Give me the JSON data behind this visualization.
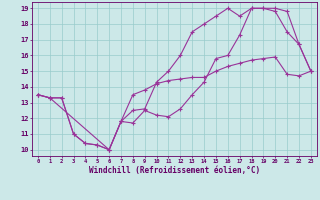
{
  "xlabel": "Windchill (Refroidissement éolien,°C)",
  "bg_color": "#cce8e8",
  "line_color": "#993399",
  "grid_color": "#99cccc",
  "axis_color": "#660066",
  "label_color": "#660066",
  "xlim": [
    -0.5,
    23.5
  ],
  "ylim": [
    9.6,
    19.4
  ],
  "xticks": [
    0,
    1,
    2,
    3,
    4,
    5,
    6,
    7,
    8,
    9,
    10,
    11,
    12,
    13,
    14,
    15,
    16,
    17,
    18,
    19,
    20,
    21,
    22,
    23
  ],
  "yticks": [
    10,
    11,
    12,
    13,
    14,
    15,
    16,
    17,
    18,
    19
  ],
  "curve1_x": [
    0,
    1,
    2,
    3,
    4,
    5,
    6,
    7,
    8,
    9,
    10,
    11,
    12,
    13,
    14,
    15,
    16,
    17,
    18,
    19,
    20,
    21,
    22,
    23
  ],
  "curve1_y": [
    13.5,
    13.3,
    13.3,
    11.0,
    10.4,
    10.3,
    10.0,
    11.8,
    11.7,
    12.5,
    12.2,
    12.1,
    12.6,
    13.5,
    14.3,
    15.8,
    16.0,
    17.3,
    19.0,
    19.0,
    19.0,
    18.8,
    16.7,
    15.0
  ],
  "curve2_x": [
    0,
    1,
    2,
    3,
    4,
    5,
    6,
    7,
    8,
    9,
    10,
    11,
    12,
    13,
    14,
    15,
    16,
    17,
    18,
    19,
    20,
    21,
    22,
    23
  ],
  "curve2_y": [
    13.5,
    13.3,
    13.3,
    11.0,
    10.4,
    10.3,
    10.0,
    11.8,
    13.5,
    13.8,
    14.2,
    14.4,
    14.5,
    14.6,
    14.6,
    15.0,
    15.3,
    15.5,
    15.7,
    15.8,
    15.9,
    14.8,
    14.7,
    15.0
  ],
  "curve3_x": [
    0,
    1,
    6,
    7,
    8,
    9,
    10,
    11,
    12,
    13,
    14,
    15,
    16,
    17,
    18,
    19,
    20,
    21,
    22,
    23
  ],
  "curve3_y": [
    13.5,
    13.3,
    10.0,
    11.8,
    12.5,
    12.6,
    14.3,
    15.0,
    16.0,
    17.5,
    18.0,
    18.5,
    19.0,
    18.5,
    19.0,
    19.0,
    18.8,
    17.5,
    16.7,
    15.0
  ]
}
